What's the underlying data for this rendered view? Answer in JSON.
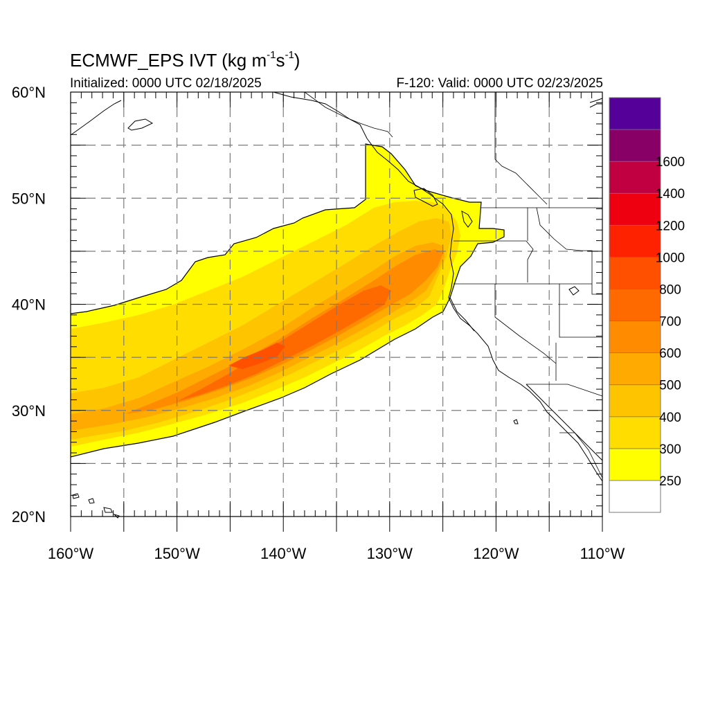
{
  "title": {
    "main": "ECMWF_EPS IVT (kg m",
    "sup1": "-1",
    "mid": "s",
    "sup2": "-1",
    "end": ")"
  },
  "initialized": "Initialized: 0000 UTC 02/18/2025",
  "valid": "F-120: Valid: 0000 UTC 02/23/2025",
  "map": {
    "lon_range": [
      -160,
      -110
    ],
    "lat_range": [
      20,
      60
    ],
    "lon_labels": [
      "160°W",
      "150°W",
      "140°W",
      "130°W",
      "120°W",
      "110°W"
    ],
    "lat_labels": [
      "60°N",
      "50°N",
      "40°N",
      "30°N",
      "20°N"
    ],
    "grid_lon": [
      -155,
      -150,
      -145,
      -140,
      -135,
      -130,
      -125,
      -120,
      -115
    ],
    "grid_lat": [
      25,
      30,
      35,
      40,
      45,
      50,
      55
    ],
    "grid": true,
    "field": "IVT",
    "river_axis": [
      {
        "lon": -160,
        "lat": 28.0,
        "width": 6.0
      },
      {
        "lon": -155,
        "lat": 29.4,
        "width": 6.2
      },
      {
        "lon": -150,
        "lat": 31.5,
        "width": 6.6
      },
      {
        "lon": -145,
        "lat": 33.8,
        "width": 6.4
      },
      {
        "lon": -140,
        "lat": 36.3,
        "width": 6.0
      },
      {
        "lon": -135,
        "lat": 38.6,
        "width": 5.6
      },
      {
        "lon": -130,
        "lat": 41.0,
        "width": 5.2
      },
      {
        "lon": -126,
        "lat": 44.0,
        "width": 4.4
      }
    ]
  },
  "colorbar": {
    "levels": [
      250,
      300,
      400,
      500,
      600,
      700,
      800,
      1000,
      1200,
      1400,
      1600
    ],
    "labels": [
      "250",
      "300",
      "400",
      "500",
      "600",
      "700",
      "800",
      "1000",
      "1200",
      "1400",
      "1600"
    ],
    "colors": [
      "#ffffff",
      "#ffff00",
      "#ffdd00",
      "#ffc400",
      "#ffaa00",
      "#ff8c00",
      "#ff6a00",
      "#ff5000",
      "#ff2200",
      "#ee0011",
      "#c00040",
      "#880066",
      "#550099"
    ]
  }
}
